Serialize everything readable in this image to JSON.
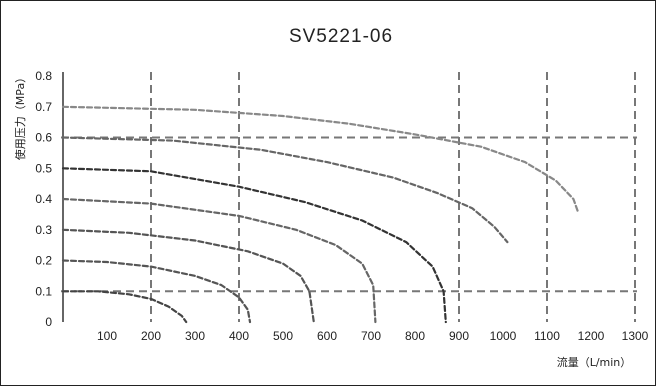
{
  "chart_data": {
    "type": "line",
    "title": "SV5221-06",
    "xlabel": "流量（L/min）",
    "ylabel": "使用压力（MPa）",
    "xlim": [
      0,
      1300
    ],
    "ylim": [
      0,
      0.8
    ],
    "x_ticks": [
      "100",
      "200",
      "300",
      "400",
      "500",
      "600",
      "700",
      "800",
      "900",
      "1000",
      "1100",
      "1200",
      "1300"
    ],
    "y_ticks": [
      "0",
      "0.1",
      "0.2",
      "0.3",
      "0.4",
      "0.5",
      "0.6",
      "0.7",
      "0.8"
    ],
    "grid_x": [
      200,
      400,
      900,
      1100,
      1300
    ],
    "grid_y": [
      0.1,
      0.6
    ],
    "series": [
      {
        "points": [
          [
            0,
            0.1
          ],
          [
            80,
            0.1
          ],
          [
            150,
            0.09
          ],
          [
            200,
            0.075
          ],
          [
            240,
            0.05
          ],
          [
            270,
            0.02
          ],
          [
            280,
            0.0
          ]
        ]
      },
      {
        "points": [
          [
            0,
            0.2
          ],
          [
            100,
            0.195
          ],
          [
            200,
            0.18
          ],
          [
            300,
            0.15
          ],
          [
            360,
            0.12
          ],
          [
            400,
            0.08
          ],
          [
            420,
            0.04
          ],
          [
            425,
            0.0
          ]
        ]
      },
      {
        "points": [
          [
            0,
            0.3
          ],
          [
            150,
            0.29
          ],
          [
            300,
            0.265
          ],
          [
            420,
            0.23
          ],
          [
            500,
            0.19
          ],
          [
            540,
            0.15
          ],
          [
            560,
            0.1
          ],
          [
            570,
            0.0
          ]
        ]
      },
      {
        "points": [
          [
            0,
            0.4
          ],
          [
            200,
            0.385
          ],
          [
            400,
            0.345
          ],
          [
            530,
            0.3
          ],
          [
            620,
            0.25
          ],
          [
            680,
            0.19
          ],
          [
            705,
            0.12
          ],
          [
            710,
            0.0
          ]
        ]
      },
      {
        "points": [
          [
            0,
            0.5
          ],
          [
            200,
            0.49
          ],
          [
            400,
            0.44
          ],
          [
            550,
            0.39
          ],
          [
            680,
            0.33
          ],
          [
            780,
            0.26
          ],
          [
            840,
            0.18
          ],
          [
            865,
            0.1
          ],
          [
            870,
            0.0
          ]
        ]
      },
      {
        "points": [
          [
            0,
            0.6
          ],
          [
            250,
            0.59
          ],
          [
            450,
            0.56
          ],
          [
            600,
            0.52
          ],
          [
            750,
            0.47
          ],
          [
            850,
            0.42
          ],
          [
            930,
            0.37
          ],
          [
            980,
            0.31
          ],
          [
            1010,
            0.26
          ]
        ]
      },
      {
        "points": [
          [
            0,
            0.7
          ],
          [
            300,
            0.69
          ],
          [
            500,
            0.67
          ],
          [
            650,
            0.645
          ],
          [
            800,
            0.61
          ],
          [
            950,
            0.57
          ],
          [
            1050,
            0.52
          ],
          [
            1120,
            0.46
          ],
          [
            1160,
            0.4
          ],
          [
            1170,
            0.36
          ]
        ]
      }
    ]
  }
}
